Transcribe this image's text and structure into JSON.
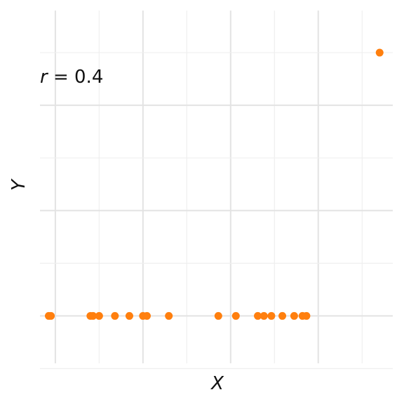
{
  "chart_data": {
    "type": "scatter",
    "title": "",
    "xlabel": "X",
    "ylabel": "Y",
    "xlim": [
      -0.35,
      7.7
    ],
    "ylim": [
      -0.45,
      2.9
    ],
    "grid": true,
    "legend": "none",
    "annotation": {
      "var": "r",
      "text": " = 0.4"
    },
    "colors": {
      "point": "#ff7f0e",
      "grid": "#e3e3e3",
      "text": "#111111"
    },
    "points": [
      {
        "x": -0.15,
        "y": 0
      },
      {
        "x": -0.1,
        "y": 0
      },
      {
        "x": 0.8,
        "y": 0
      },
      {
        "x": 0.86,
        "y": 0
      },
      {
        "x": 1.0,
        "y": 0
      },
      {
        "x": 1.36,
        "y": 0
      },
      {
        "x": 1.69,
        "y": 0
      },
      {
        "x": 2.0,
        "y": 0
      },
      {
        "x": 2.09,
        "y": 0
      },
      {
        "x": 2.59,
        "y": 0
      },
      {
        "x": 3.72,
        "y": 0
      },
      {
        "x": 4.12,
        "y": 0
      },
      {
        "x": 4.62,
        "y": 0
      },
      {
        "x": 4.76,
        "y": 0
      },
      {
        "x": 4.93,
        "y": 0
      },
      {
        "x": 5.18,
        "y": 0
      },
      {
        "x": 5.45,
        "y": 0
      },
      {
        "x": 5.64,
        "y": 0
      },
      {
        "x": 5.73,
        "y": 0
      },
      {
        "x": 7.4,
        "y": 2.5
      }
    ]
  }
}
